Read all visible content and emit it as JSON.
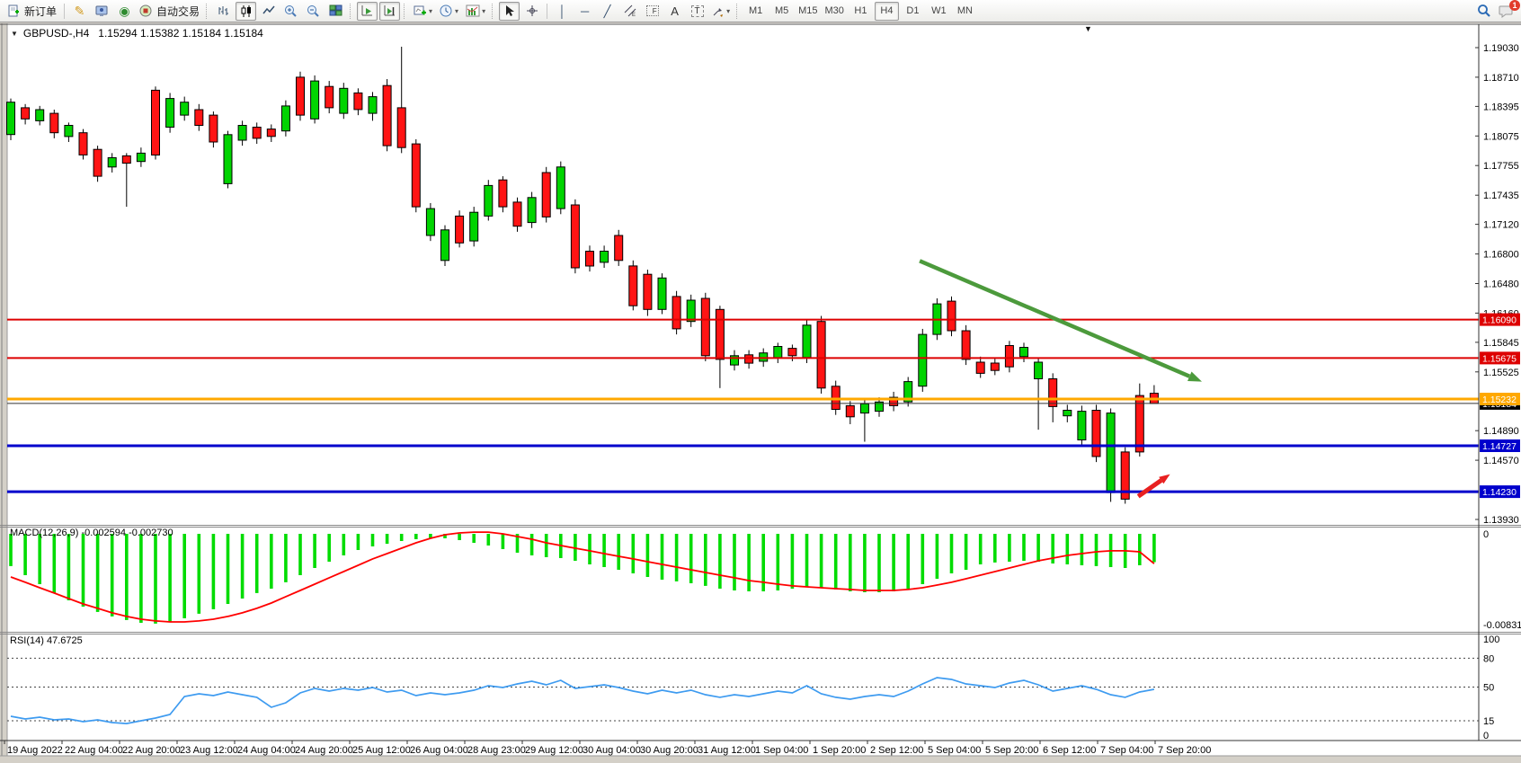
{
  "window": {
    "symbol_period": "GBPUSD-,H4",
    "ohlc_line": "1.15294 1.15382 1.15184 1.15184"
  },
  "toolbar": {
    "new_order": "新订单",
    "autotrading": "自动交易",
    "timeframes": [
      "M1",
      "M5",
      "M15",
      "M30",
      "H1",
      "H4",
      "D1",
      "W1",
      "MN"
    ],
    "active_timeframe": "H4",
    "notification_count": "1",
    "text_tool": "A",
    "label_tool": "T",
    "fibo_tool": "F"
  },
  "colors": {
    "bull": "#00d400",
    "bear": "#ff1414",
    "wick": "#000000",
    "macd_hist": "#00dc00",
    "macd_signal": "#ff0000",
    "rsi_line": "#3e9bf0",
    "resistance": "#dd0000",
    "orange_level": "#ffa800",
    "support": "#0000cc",
    "current_price_line": "#333333",
    "green_arrow": "#4c9a3c",
    "red_arrow": "#e82020"
  },
  "chart_data": {
    "type": "candlestick",
    "title": "GBPUSD-,H4",
    "timeframe": "H4",
    "ohlc_display": "1.15294 1.15382 1.15184 1.15184",
    "ylim": [
      1.1393,
      1.1903
    ],
    "price_axis_ticks": [
      "1.19030",
      "1.18710",
      "1.18395",
      "1.18075",
      "1.17755",
      "1.17435",
      "1.17120",
      "1.16800",
      "1.16480",
      "1.16160",
      "1.15845",
      "1.15525",
      "1.14890",
      "1.14570",
      "1.13930"
    ],
    "candles": [
      [
        1.1809,
        1.1848,
        1.1803,
        1.1844
      ],
      [
        1.1838,
        1.1842,
        1.182,
        1.1826
      ],
      [
        1.1824,
        1.184,
        1.1819,
        1.1836
      ],
      [
        1.1832,
        1.1836,
        1.1805,
        1.1811
      ],
      [
        1.1807,
        1.1822,
        1.1801,
        1.1819
      ],
      [
        1.1811,
        1.1815,
        1.1782,
        1.1787
      ],
      [
        1.1793,
        1.1797,
        1.1758,
        1.1764
      ],
      [
        1.1774,
        1.1789,
        1.1768,
        1.1784
      ],
      [
        1.1786,
        1.1789,
        1.1731,
        1.1778
      ],
      [
        1.178,
        1.1795,
        1.1774,
        1.1789
      ],
      [
        1.1857,
        1.1861,
        1.1782,
        1.1787
      ],
      [
        1.1817,
        1.1854,
        1.1811,
        1.1848
      ],
      [
        1.183,
        1.185,
        1.1824,
        1.1844
      ],
      [
        1.1836,
        1.1842,
        1.1813,
        1.1819
      ],
      [
        1.183,
        1.1834,
        1.1795,
        1.1801
      ],
      [
        1.1756,
        1.1813,
        1.1751,
        1.1809
      ],
      [
        1.1803,
        1.1824,
        1.1797,
        1.1819
      ],
      [
        1.1817,
        1.1822,
        1.1799,
        1.1805
      ],
      [
        1.1815,
        1.182,
        1.1801,
        1.1807
      ],
      [
        1.1813,
        1.1846,
        1.1807,
        1.184
      ],
      [
        1.1871,
        1.1877,
        1.1824,
        1.183
      ],
      [
        1.1826,
        1.1873,
        1.1821,
        1.1867
      ],
      [
        1.1861,
        1.1867,
        1.1832,
        1.1838
      ],
      [
        1.1832,
        1.1865,
        1.1826,
        1.1859
      ],
      [
        1.1854,
        1.1859,
        1.183,
        1.1836
      ],
      [
        1.1832,
        1.1855,
        1.1824,
        1.185
      ],
      [
        1.1862,
        1.1869,
        1.1791,
        1.1797
      ],
      [
        1.1838,
        1.1904,
        1.1789,
        1.1795
      ],
      [
        1.1799,
        1.1804,
        1.1725,
        1.1731
      ],
      [
        1.17,
        1.1735,
        1.1694,
        1.1729
      ],
      [
        1.1673,
        1.1711,
        1.1667,
        1.1706
      ],
      [
        1.1721,
        1.1727,
        1.1687,
        1.1692
      ],
      [
        1.1694,
        1.1731,
        1.1688,
        1.1725
      ],
      [
        1.1721,
        1.176,
        1.1716,
        1.1754
      ],
      [
        1.176,
        1.1764,
        1.1725,
        1.1731
      ],
      [
        1.1736,
        1.1741,
        1.1704,
        1.171
      ],
      [
        1.1714,
        1.1747,
        1.1708,
        1.1741
      ],
      [
        1.1768,
        1.1774,
        1.1714,
        1.172
      ],
      [
        1.1729,
        1.178,
        1.1723,
        1.1774
      ],
      [
        1.1733,
        1.1739,
        1.1659,
        1.1665
      ],
      [
        1.1683,
        1.1689,
        1.1661,
        1.1667
      ],
      [
        1.1671,
        1.1689,
        1.1665,
        1.1683
      ],
      [
        1.17,
        1.1706,
        1.1667,
        1.1673
      ],
      [
        1.1667,
        1.1673,
        1.1619,
        1.1624
      ],
      [
        1.1658,
        1.1663,
        1.1613,
        1.162
      ],
      [
        1.162,
        1.1659,
        1.1615,
        1.1654
      ],
      [
        1.1634,
        1.164,
        1.1593,
        1.1599
      ],
      [
        1.1607,
        1.1636,
        1.1601,
        1.163
      ],
      [
        1.1632,
        1.1638,
        1.1564,
        1.157
      ],
      [
        1.162,
        1.1624,
        1.1535,
        1.1566
      ],
      [
        1.156,
        1.1576,
        1.1554,
        1.157
      ],
      [
        1.1571,
        1.1576,
        1.1556,
        1.1562
      ],
      [
        1.1564,
        1.1578,
        1.1558,
        1.1573
      ],
      [
        1.1568,
        1.1584,
        1.1562,
        1.158
      ],
      [
        1.1578,
        1.1582,
        1.1564,
        1.157
      ],
      [
        1.1568,
        1.1609,
        1.1562,
        1.1603
      ],
      [
        1.1607,
        1.1613,
        1.1529,
        1.1535
      ],
      [
        1.1537,
        1.1543,
        1.1506,
        1.1512
      ],
      [
        1.1516,
        1.1521,
        1.1496,
        1.1504
      ],
      [
        1.1508,
        1.1523,
        1.1477,
        1.1518
      ],
      [
        1.151,
        1.1525,
        1.1504,
        1.152
      ],
      [
        1.1525,
        1.1531,
        1.151,
        1.1516
      ],
      [
        1.152,
        1.1547,
        1.1515,
        1.1542
      ],
      [
        1.1537,
        1.1599,
        1.1531,
        1.1593
      ],
      [
        1.1593,
        1.1632,
        1.1587,
        1.1626
      ],
      [
        1.1629,
        1.1634,
        1.1591,
        1.1597
      ],
      [
        1.1597,
        1.1603,
        1.156,
        1.1566
      ],
      [
        1.1563,
        1.1569,
        1.1546,
        1.1551
      ],
      [
        1.1562,
        1.1568,
        1.1549,
        1.1554
      ],
      [
        1.1581,
        1.1586,
        1.1552,
        1.1558
      ],
      [
        1.1569,
        1.1584,
        1.1563,
        1.1579
      ],
      [
        1.1545,
        1.1568,
        1.149,
        1.1563
      ],
      [
        1.1545,
        1.1551,
        1.1498,
        1.1515
      ],
      [
        1.1505,
        1.1517,
        1.1498,
        1.1511
      ],
      [
        1.1479,
        1.1516,
        1.1473,
        1.151
      ],
      [
        1.1511,
        1.1517,
        1.1455,
        1.1461
      ],
      [
        1.1422,
        1.1513,
        1.1412,
        1.1508
      ],
      [
        1.1466,
        1.1471,
        1.141,
        1.1415
      ],
      [
        1.1527,
        1.154,
        1.1461,
        1.1466
      ],
      [
        1.15294,
        1.15382,
        1.15184,
        1.15184
      ]
    ],
    "hlines": [
      {
        "price": 1.1609,
        "label": "1.16090",
        "color": "#dd0000",
        "width": 2,
        "name": "resistance-line-upper"
      },
      {
        "price": 1.15675,
        "label": "1.15675",
        "color": "#dd0000",
        "width": 2,
        "name": "resistance-line-lower"
      },
      {
        "price": 1.15232,
        "label": "1.15232",
        "color": "#ffa800",
        "width": 3,
        "name": "orange-level-line"
      },
      {
        "price": 1.14727,
        "label": "1.14727",
        "color": "#0000cc",
        "width": 3,
        "name": "support-line-upper"
      },
      {
        "price": 1.1423,
        "label": "1.14230",
        "color": "#0000cc",
        "width": 3,
        "name": "support-line-lower"
      }
    ],
    "current_price": {
      "price": 1.15184,
      "label": "1.15184",
      "badge_bg": "#000000"
    },
    "arrows": [
      {
        "name": "green-trend-arrow",
        "color": "#4c9a3c",
        "from_bar": 62.8,
        "from_price": 1.16725,
        "to_bar": 82.3,
        "to_price": 1.1542,
        "width": 4.5,
        "head": 15
      },
      {
        "name": "red-bounce-arrow",
        "color": "#e82020",
        "from_bar": 77.9,
        "from_price": 1.1418,
        "to_bar": 80.1,
        "to_price": 1.1442,
        "width": 5,
        "head": 12
      }
    ],
    "macd": {
      "label": "MACD(12,26,9) -0.002594 -0.002730",
      "current_macd": -0.002594,
      "current_signal": -0.00273,
      "ylim": [
        -0.008317,
        0.0003
      ],
      "axis_ticks": [
        {
          "v": 0,
          "label": "0"
        },
        {
          "v": -0.008317,
          "label": "-0.008317"
        }
      ],
      "hist": [
        -0.00296,
        -0.00379,
        -0.00461,
        -0.00543,
        -0.00609,
        -0.00667,
        -0.00716,
        -0.00757,
        -0.0079,
        -0.00815,
        -0.00823,
        -0.00807,
        -0.00774,
        -0.00732,
        -0.00691,
        -0.00642,
        -0.00593,
        -0.00543,
        -0.00502,
        -0.00444,
        -0.00379,
        -0.00313,
        -0.00255,
        -0.00198,
        -0.00148,
        -0.00115,
        -0.00091,
        -0.00066,
        -0.00049,
        -0.00041,
        -0.00041,
        -0.00058,
        -0.00082,
        -0.00107,
        -0.0014,
        -0.00173,
        -0.00198,
        -0.00214,
        -0.00222,
        -0.00247,
        -0.0028,
        -0.00305,
        -0.00329,
        -0.00362,
        -0.00395,
        -0.0042,
        -0.00436,
        -0.00453,
        -0.00477,
        -0.00502,
        -0.00519,
        -0.00527,
        -0.00527,
        -0.00519,
        -0.00502,
        -0.00486,
        -0.00494,
        -0.0051,
        -0.00527,
        -0.00535,
        -0.00535,
        -0.00527,
        -0.00502,
        -0.00461,
        -0.00412,
        -0.00362,
        -0.00329,
        -0.0028,
        -0.00263,
        -0.00255,
        -0.00247,
        -0.00255,
        -0.00272,
        -0.0028,
        -0.00288,
        -0.00296,
        -0.00305,
        -0.00313,
        -0.00288,
        -0.002594
      ],
      "signal": [
        -0.00395,
        -0.00444,
        -0.00494,
        -0.00543,
        -0.00593,
        -0.00642,
        -0.00683,
        -0.00724,
        -0.00757,
        -0.00782,
        -0.00798,
        -0.00807,
        -0.00807,
        -0.00798,
        -0.00782,
        -0.00757,
        -0.00724,
        -0.00683,
        -0.00634,
        -0.00576,
        -0.00519,
        -0.00461,
        -0.00403,
        -0.00346,
        -0.00288,
        -0.0023,
        -0.00181,
        -0.00132,
        -0.00082,
        -0.00041,
        -8e-05,
        8e-05,
        0.00016,
        0.00016,
        0.0,
        -0.00025,
        -0.00049,
        -0.00082,
        -0.00107,
        -0.00132,
        -0.00156,
        -0.00181,
        -0.00206,
        -0.0023,
        -0.00255,
        -0.0028,
        -0.00305,
        -0.00329,
        -0.00354,
        -0.00379,
        -0.00403,
        -0.00428,
        -0.00444,
        -0.00461,
        -0.00477,
        -0.00486,
        -0.00494,
        -0.00502,
        -0.0051,
        -0.00519,
        -0.00519,
        -0.00519,
        -0.0051,
        -0.00494,
        -0.00469,
        -0.00444,
        -0.00412,
        -0.00379,
        -0.00346,
        -0.00313,
        -0.0028,
        -0.00247,
        -0.00222,
        -0.00198,
        -0.00181,
        -0.00165,
        -0.00156,
        -0.00156,
        -0.00165,
        -0.00273
      ]
    },
    "rsi": {
      "label": "RSI(14) 47.6725",
      "current": 47.6725,
      "ylim": [
        0,
        100
      ],
      "levels": [
        80,
        50,
        15
      ],
      "axis_ticks": [
        {
          "v": 100,
          "label": "100"
        },
        {
          "v": 80,
          "label": "80"
        },
        {
          "v": 50,
          "label": "50"
        },
        {
          "v": 15,
          "label": "15"
        },
        {
          "v": 0,
          "label": "0"
        }
      ],
      "values": [
        19.6,
        16.8,
        18.7,
        15.9,
        16.8,
        14.0,
        15.9,
        13.1,
        12.1,
        15.0,
        17.8,
        21.5,
        40.2,
        43.0,
        41.1,
        44.9,
        42.1,
        39.3,
        29.0,
        33.6,
        43.9,
        48.6,
        45.8,
        48.6,
        46.7,
        49.5,
        44.9,
        46.7,
        41.1,
        43.9,
        42.1,
        43.9,
        46.7,
        51.4,
        49.5,
        53.3,
        56.1,
        52.3,
        57.0,
        48.6,
        50.5,
        52.3,
        49.5,
        45.8,
        43.0,
        46.7,
        43.9,
        46.7,
        42.1,
        39.3,
        42.1,
        40.2,
        43.0,
        45.8,
        43.9,
        51.4,
        43.0,
        39.3,
        37.4,
        40.2,
        42.1,
        40.2,
        45.8,
        53.3,
        59.8,
        57.9,
        53.3,
        51.4,
        49.5,
        54.2,
        57.0,
        52.3,
        45.8,
        48.6,
        51.4,
        47.7,
        42.1,
        39.3,
        44.9,
        47.6725
      ]
    },
    "time_labels": [
      "19 Aug 2022",
      "22 Aug 04:00",
      "22 Aug 20:00",
      "23 Aug 12:00",
      "24 Aug 04:00",
      "24 Aug 20:00",
      "25 Aug 12:00",
      "26 Aug 04:00",
      "28 Aug 23:00",
      "29 Aug 12:00",
      "30 Aug 04:00",
      "30 Aug 20:00",
      "31 Aug 12:00",
      "1 Sep 04:00",
      "1 Sep 20:00",
      "2 Sep 12:00",
      "5 Sep 04:00",
      "5 Sep 20:00",
      "6 Sep 12:00",
      "7 Sep 04:00",
      "7 Sep 20:00"
    ]
  }
}
